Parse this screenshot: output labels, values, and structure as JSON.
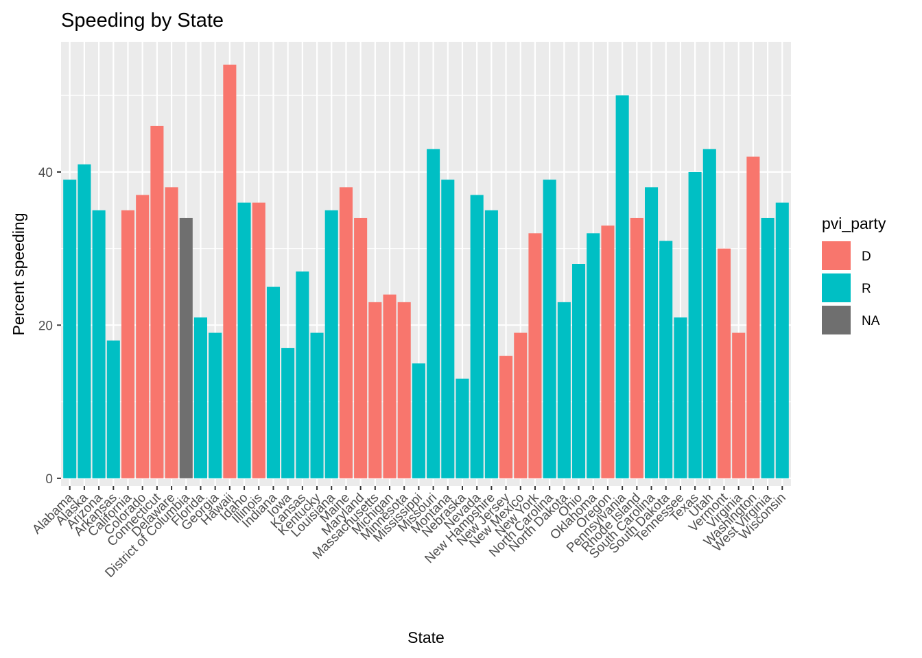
{
  "chart_data": {
    "type": "bar",
    "title": "Speeding by State",
    "xlabel": "State",
    "ylabel": "Percent speeding",
    "ylim": [
      -1,
      57
    ],
    "yticks": [
      0,
      20,
      40
    ],
    "grid": true,
    "legend_position": "right",
    "legend": {
      "title": "pvi_party",
      "entries": [
        {
          "key": "D",
          "label": "D",
          "color": "#F8766D"
        },
        {
          "key": "R",
          "label": "R",
          "color": "#00BFC4"
        },
        {
          "key": "NA",
          "label": "NA",
          "color": "#6F6F6F"
        }
      ]
    },
    "categories": [
      "Alabama",
      "Alaska",
      "Arizona",
      "Arkansas",
      "California",
      "Colorado",
      "Connecticut",
      "Delaware",
      "District of Columbia",
      "Florida",
      "Georgia",
      "Hawaii",
      "Idaho",
      "Illinois",
      "Indiana",
      "Iowa",
      "Kansas",
      "Kentucky",
      "Louisiana",
      "Maine",
      "Maryland",
      "Massachusetts",
      "Michigan",
      "Minnesota",
      "Mississippi",
      "Missouri",
      "Montana",
      "Nebraska",
      "Nevada",
      "New Hampshire",
      "New Jersey",
      "New Mexico",
      "New York",
      "North Carolina",
      "North Dakota",
      "Ohio",
      "Oklahoma",
      "Oregon",
      "Pennsylvania",
      "Rhode Island",
      "South Carolina",
      "South Dakota",
      "Tennessee",
      "Texas",
      "Utah",
      "Vermont",
      "Virginia",
      "Washington",
      "West Virginia",
      "Wisconsin"
    ],
    "values": [
      39,
      41,
      35,
      18,
      35,
      37,
      46,
      38,
      34,
      21,
      19,
      54,
      36,
      36,
      25,
      17,
      27,
      19,
      35,
      38,
      34,
      23,
      24,
      23,
      15,
      43,
      39,
      13,
      37,
      35,
      16,
      19,
      32,
      39,
      23,
      28,
      32,
      33,
      50,
      34,
      38,
      31,
      21,
      40,
      43,
      30,
      19,
      42,
      34,
      36
    ],
    "party": [
      "R",
      "R",
      "R",
      "R",
      "D",
      "D",
      "D",
      "D",
      "NA",
      "R",
      "R",
      "D",
      "R",
      "D",
      "R",
      "R",
      "R",
      "R",
      "R",
      "D",
      "D",
      "D",
      "D",
      "D",
      "R",
      "R",
      "R",
      "R",
      "R",
      "R",
      "D",
      "D",
      "D",
      "R",
      "R",
      "R",
      "R",
      "D",
      "R",
      "D",
      "R",
      "R",
      "R",
      "R",
      "R",
      "D",
      "D",
      "D",
      "R",
      "R"
    ]
  }
}
